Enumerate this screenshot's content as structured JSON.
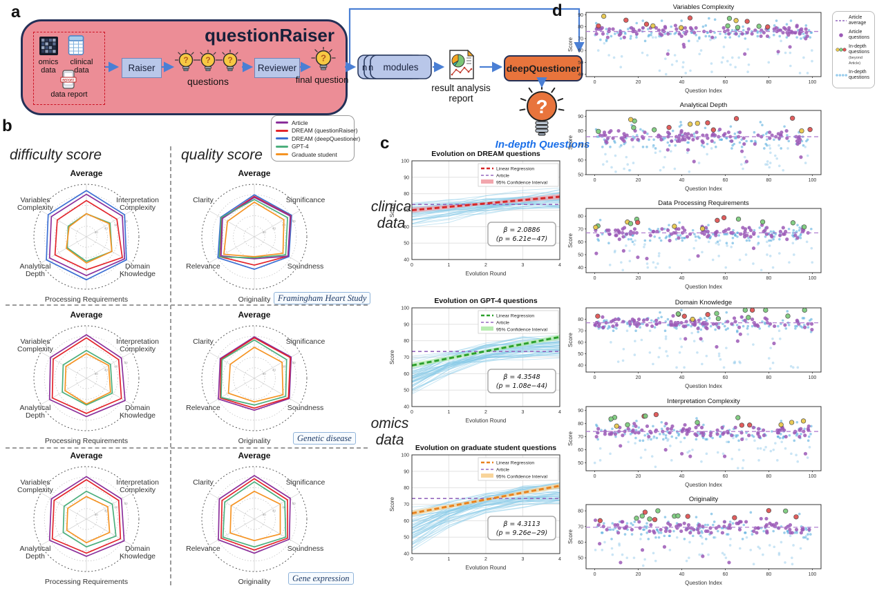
{
  "panel_a": {
    "label": "a",
    "title": "questionRaiser",
    "inputs": {
      "omics": "omics\ndata",
      "clinical": "clinical\ndata",
      "report": "data report",
      "report_icon_text": "REPORT"
    },
    "raiser": "Raiser",
    "questions_label": "questions",
    "reviewer": "Reviewer",
    "final_question": "final question",
    "modules": {
      "n1": "n",
      "n2": "n",
      "label": "modules"
    },
    "result_report": "result analysis\nreport",
    "deep_questioner": "deepQuestioner",
    "in_depth": "In-depth Questions"
  },
  "panel_b": {
    "label": "b",
    "difficulty_title": "difficulty score",
    "quality_title": "quality score",
    "legend": [
      {
        "label": "Article",
        "color": "#8b2f9b"
      },
      {
        "label": "DREAM (questionRaiser)",
        "color": "#e3242b"
      },
      {
        "label": "DREAM (deepQuestioner)",
        "color": "#3b6fd4"
      },
      {
        "label": "GPT-4",
        "color": "#4caf7d"
      },
      {
        "label": "Graduate student",
        "color": "#f59322"
      }
    ],
    "datasets": [
      "Framingham Heart Study",
      "Genetic disease",
      "Gene expression"
    ],
    "side_labels": {
      "clinical": "clinica\ndata",
      "omics": "omics\ndata"
    }
  },
  "panel_c": {
    "label": "c"
  },
  "panel_d": {
    "label": "d"
  },
  "chart_data": {
    "radars": [
      {
        "type": "radar",
        "dataset": "Framingham Heart Study",
        "score": "difficulty",
        "axes": [
          "Average",
          "Interpretation Complexity",
          "Domain Knowledge",
          "Processing Requirements",
          "Analytical Depth",
          "Variables Complexity"
        ],
        "rticks": [
          20,
          40,
          60,
          80
        ],
        "rmax": 100,
        "series": [
          {
            "name": "DREAM (deepQuestioner)",
            "color": "#3b6fd4",
            "values": [
              88,
              84,
              88,
              82,
              88,
              84
            ]
          },
          {
            "name": "Article",
            "color": "#8b2f9b",
            "values": [
              81,
              79,
              84,
              74,
              81,
              77
            ]
          },
          {
            "name": "DREAM (questionRaiser)",
            "color": "#e3242b",
            "values": [
              69,
              67,
              79,
              63,
              69,
              64
            ]
          },
          {
            "name": "GPT-4",
            "color": "#4caf7d",
            "values": [
              44,
              52,
              56,
              47,
              42,
              40
            ]
          },
          {
            "name": "Graduate student",
            "color": "#f59322",
            "values": [
              44,
              50,
              56,
              50,
              44,
              38
            ]
          }
        ]
      },
      {
        "type": "radar",
        "dataset": "Framingham Heart Study",
        "score": "quality",
        "axes": [
          "Average",
          "Significance",
          "Soundness",
          "Originality",
          "Relevance",
          "Clarity"
        ],
        "rticks": [
          20,
          40,
          60,
          80
        ],
        "rmax": 100,
        "series": [
          {
            "name": "DREAM (deepQuestioner)",
            "color": "#3b6fd4",
            "values": [
              80,
              82,
              76,
              62,
              80,
              74
            ]
          },
          {
            "name": "DREAM (questionRaiser)",
            "color": "#e3242b",
            "values": [
              77,
              80,
              74,
              54,
              76,
              71
            ]
          },
          {
            "name": "Article",
            "color": "#8b2f9b",
            "values": [
              75,
              79,
              74,
              42,
              73,
              70
            ]
          },
          {
            "name": "GPT-4",
            "color": "#4caf7d",
            "values": [
              71,
              73,
              69,
              40,
              77,
              73
            ]
          },
          {
            "name": "Graduate student",
            "color": "#f59322",
            "values": [
              66,
              65,
              63,
              38,
              67,
              59
            ]
          }
        ]
      },
      {
        "type": "radar",
        "dataset": "Genetic disease",
        "score": "difficulty",
        "axes": [
          "Average",
          "Interpretation Complexity",
          "Domain Knowledge",
          "Processing Requirements",
          "Analytical Depth",
          "Variables Complexity"
        ],
        "rticks": [
          20,
          40,
          60,
          80
        ],
        "rmax": 100,
        "series": [
          {
            "name": "Article",
            "color": "#8b2f9b",
            "values": [
              83,
              77,
              85,
              73,
              81,
              79
            ]
          },
          {
            "name": "DREAM (questionRaiser)",
            "color": "#e3242b",
            "values": [
              77,
              71,
              77,
              67,
              75,
              73
            ]
          },
          {
            "name": "GPT-4",
            "color": "#4caf7d",
            "values": [
              53,
              53,
              57,
              51,
              53,
              51
            ]
          },
          {
            "name": "Graduate student",
            "color": "#f59322",
            "values": [
              47,
              49,
              53,
              49,
              47,
              45
            ]
          }
        ]
      },
      {
        "type": "radar",
        "dataset": "Genetic disease",
        "score": "quality",
        "axes": [
          "Average",
          "Significance",
          "Soundness",
          "Originality",
          "Relevance",
          "Clarity"
        ],
        "rticks": [
          20,
          40,
          60,
          80
        ],
        "rmax": 100,
        "series": [
          {
            "name": "Article",
            "color": "#8b2f9b",
            "values": [
              79,
              81,
              77,
              61,
              79,
              75
            ]
          },
          {
            "name": "DREAM (questionRaiser)",
            "color": "#e3242b",
            "values": [
              77,
              79,
              75,
              57,
              75,
              73
            ]
          },
          {
            "name": "GPT-4",
            "color": "#4caf7d",
            "values": [
              73,
              71,
              69,
              51,
              73,
              71
            ]
          },
          {
            "name": "Graduate student",
            "color": "#f59322",
            "values": [
              59,
              61,
              63,
              45,
              57,
              53
            ]
          }
        ]
      },
      {
        "type": "radar",
        "dataset": "Gene expression",
        "score": "difficulty",
        "axes": [
          "Average",
          "Interpretation Complexity",
          "Domain Knowledge",
          "Processing Requirements",
          "Analytical Depth",
          "Variables Complexity"
        ],
        "rticks": [
          20,
          40,
          60,
          80
        ],
        "rmax": 100,
        "series": [
          {
            "name": "Article",
            "color": "#8b2f9b",
            "values": [
              81,
              77,
              83,
              71,
              81,
              77
            ]
          },
          {
            "name": "DREAM (questionRaiser)",
            "color": "#e3242b",
            "values": [
              75,
              71,
              75,
              65,
              75,
              71
            ]
          },
          {
            "name": "GPT-4",
            "color": "#4caf7d",
            "values": [
              53,
              57,
              65,
              53,
              51,
              49
            ]
          },
          {
            "name": "Graduate student",
            "color": "#f59322",
            "values": [
              43,
              47,
              51,
              45,
              43,
              41
            ]
          }
        ]
      },
      {
        "type": "radar",
        "dataset": "Gene expression",
        "score": "quality",
        "axes": [
          "Average",
          "Significance",
          "Soundness",
          "Originality",
          "Relevance",
          "Clarity"
        ],
        "rticks": [
          20,
          40,
          60,
          80
        ],
        "rmax": 100,
        "series": [
          {
            "name": "Article",
            "color": "#8b2f9b",
            "values": [
              83,
              79,
              77,
              65,
              79,
              77
            ]
          },
          {
            "name": "DREAM (questionRaiser)",
            "color": "#e3242b",
            "values": [
              77,
              73,
              73,
              59,
              73,
              71
            ]
          },
          {
            "name": "GPT-4",
            "color": "#4caf7d",
            "values": [
              71,
              67,
              69,
              53,
              69,
              65
            ]
          },
          {
            "name": "Graduate student",
            "color": "#f59322",
            "values": [
              53,
              57,
              57,
              41,
              53,
              51
            ]
          }
        ]
      }
    ],
    "evolution_legend": [
      "Linear Regression",
      "Article",
      "95% Confidence Interval"
    ],
    "article_line": {
      "label": "Article",
      "color": "#9467bd",
      "y": 73.5
    },
    "evolution": [
      {
        "type": "line",
        "title": "Evolution on DREAM questions",
        "xlabel": "Evolution Round",
        "ylabel": "Score",
        "ylim": [
          40,
          100
        ],
        "yticks": [
          40,
          50,
          60,
          70,
          80,
          90,
          100
        ],
        "xticks": [
          0,
          1,
          2,
          3,
          4
        ],
        "regression": {
          "y_start": 70.0,
          "y_end": 78.2,
          "color": "#d62728",
          "ci_color": "#f2a6ad"
        },
        "beta": "β = 2.0886",
        "p": "(p = 6.21e−47)",
        "spaghetti": {
          "count": 48,
          "start_min": 59,
          "start_max": 78,
          "end_min": 72,
          "end_max": 82,
          "power": 1.1,
          "seed": 11
        }
      },
      {
        "type": "line",
        "title": "Evolution on GPT-4 questions",
        "xlabel": "Evolution Round",
        "ylabel": "Score",
        "ylim": [
          40,
          100
        ],
        "yticks": [
          40,
          50,
          60,
          70,
          80,
          90,
          100
        ],
        "xticks": [
          0,
          1,
          2,
          3,
          4
        ],
        "regression": {
          "y_start": 65.0,
          "y_end": 82.3,
          "color": "#2ca02c",
          "ci_color": "#b8ecb0"
        },
        "beta": "β = 4.3548",
        "p": "(p = 1.08e−44)",
        "spaghetti": {
          "count": 52,
          "start_min": 41,
          "start_max": 73,
          "end_min": 71,
          "end_max": 82,
          "power": 2.2,
          "seed": 22
        }
      },
      {
        "type": "line",
        "title": "Evolution on graduate student questions",
        "xlabel": "Evolution Round",
        "ylabel": "Score",
        "ylim": [
          40,
          100
        ],
        "yticks": [
          40,
          50,
          60,
          70,
          80,
          90,
          100
        ],
        "xticks": [
          0,
          1,
          2,
          3,
          4
        ],
        "regression": {
          "y_start": 64.5,
          "y_end": 81.2,
          "color": "#e8821e",
          "ci_color": "#f8d49a"
        },
        "beta": "β = 4.3113",
        "p": "(p = 9.26e−29)",
        "spaghetti": {
          "count": 52,
          "start_min": 39,
          "start_max": 72,
          "end_min": 70,
          "end_max": 82,
          "power": 2.0,
          "seed": 33
        }
      }
    ],
    "scatter_common": {
      "xlabel": "Question Index",
      "ylabel": "Score",
      "xticks": [
        0,
        20,
        40,
        60,
        80,
        100
      ],
      "xlim": [
        -4,
        104
      ]
    },
    "scatters": [
      {
        "type": "scatter",
        "title": "Variables Complexity",
        "ylim": [
          38,
          92
        ],
        "yticks": [
          40,
          50,
          60,
          70,
          80,
          90
        ],
        "article_avg": 76,
        "seed": 1
      },
      {
        "type": "scatter",
        "title": "Analytical Depth",
        "ylim": [
          50,
          94
        ],
        "yticks": [
          50,
          60,
          70,
          80,
          90
        ],
        "article_avg": 76,
        "seed": 2
      },
      {
        "type": "scatter",
        "title": "Data Processing Requirements",
        "ylim": [
          36,
          86
        ],
        "yticks": [
          40,
          50,
          60,
          70,
          80
        ],
        "article_avg": 67,
        "seed": 3
      },
      {
        "type": "scatter",
        "title": "Domain Knowledge",
        "ylim": [
          34,
          90
        ],
        "yticks": [
          40,
          50,
          60,
          70,
          80
        ],
        "article_avg": 77,
        "seed": 4
      },
      {
        "type": "scatter",
        "title": "Interpretation Complexity",
        "ylim": [
          44,
          93
        ],
        "yticks": [
          50,
          60,
          70,
          80,
          90
        ],
        "article_avg": 74,
        "seed": 5
      },
      {
        "type": "scatter",
        "title": "Originality",
        "ylim": [
          43,
          84
        ],
        "yticks": [
          50,
          60,
          70,
          80
        ],
        "article_avg": 69.5,
        "seed": 6
      }
    ],
    "scatter_legend": [
      {
        "label": "Article average",
        "type": "dash",
        "color": "#9467bd"
      },
      {
        "label": "Article questions",
        "type": "dot",
        "color": "#9b59b6"
      },
      {
        "label": "In-depth questions",
        "sub": "(beyond Article)",
        "type": "dots3",
        "colors": [
          "#e8c84e",
          "#7ecc7e",
          "#e05555"
        ]
      },
      {
        "label": "In-depth questions",
        "type": "dots4",
        "color": "#7fc0e8"
      }
    ],
    "scatter_point_colors": {
      "in_depth_band": "#58aede",
      "in_depth_tail": "#9fd0ec",
      "article": "#9b59b6",
      "beyond": [
        "#e05555",
        "#7ecc7e",
        "#e8c84e"
      ]
    }
  }
}
